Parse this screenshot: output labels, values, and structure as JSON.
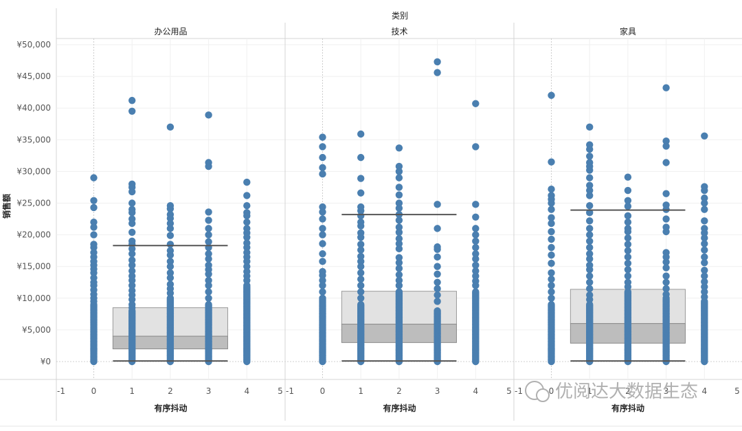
{
  "chart_data": {
    "type": "scatter",
    "title": "类别",
    "ylabel": "销售额",
    "xlabel": "有序抖动",
    "ylim": [
      0,
      50000
    ],
    "yticks": [
      0,
      5000,
      10000,
      15000,
      20000,
      25000,
      30000,
      35000,
      40000,
      45000,
      50000
    ],
    "ytick_labels": [
      "¥0",
      "¥5,000",
      "¥10,000",
      "¥15,000",
      "¥20,000",
      "¥25,000",
      "¥30,000",
      "¥35,000",
      "¥40,000",
      "¥45,000",
      "¥50,000"
    ],
    "xlim": [
      -1,
      5
    ],
    "xticks": [
      -1,
      0,
      1,
      2,
      3,
      4,
      5
    ],
    "grid": true,
    "point_color": "#4a7fb0",
    "panels": [
      {
        "category": "办公用品",
        "box": {
          "q1": 2000,
          "median": 4000,
          "q3": 8500,
          "whisker_low": 100,
          "whisker_high": 18300
        },
        "columns": [
          {
            "x": 0,
            "dense_to": 9000,
            "points": [
              29000,
              25400,
              24300,
              22000,
              21200,
              20000,
              18500,
              18000,
              17200,
              16500,
              15800,
              15200,
              14600,
              14000,
              13200,
              12500,
              12000,
              11300,
              10600,
              10000,
              9500
            ]
          },
          {
            "x": 1,
            "dense_to": 8000,
            "points": [
              41200,
              39500,
              28000,
              27500,
              26800,
              25000,
              24000,
              23500,
              22500,
              21800,
              20400,
              19000,
              18500,
              17800,
              17000,
              16000,
              15200,
              14300,
              13500,
              12800,
              12000,
              11200,
              10500,
              9800,
              9000,
              8500
            ]
          },
          {
            "x": 2,
            "dense_to": 10000,
            "points": [
              37000,
              24600,
              24100,
              23200,
              22600,
              21800,
              21000,
              19900,
              18500,
              17500,
              16800,
              15800,
              15000,
              14000,
              13200,
              12200,
              11500,
              10800
            ]
          },
          {
            "x": 3,
            "dense_to": 9000,
            "points": [
              38900,
              31400,
              30800,
              23600,
              22300,
              21000,
              20000,
              18900,
              18000,
              17000,
              16200,
              15200,
              14500,
              13800,
              12800,
              12000,
              11000,
              10000
            ]
          },
          {
            "x": 4,
            "dense_to": 12000,
            "points": [
              28300,
              26200,
              24600,
              23500,
              23000,
              22000,
              21000,
              20300,
              19600,
              18700,
              18000,
              17200,
              16500,
              15800,
              15000,
              14200,
              13500,
              12800
            ]
          }
        ]
      },
      {
        "category": "技术",
        "box": {
          "q1": 3000,
          "median": 5900,
          "q3": 11100,
          "whisker_low": 100,
          "whisker_high": 23200
        },
        "columns": [
          {
            "x": 0,
            "dense_to": 10000,
            "points": [
              35400,
              33900,
              32200,
              30600,
              29600,
              24400,
              23600,
              22500,
              21000,
              20000,
              18600,
              17000,
              15800,
              14200,
              13600,
              12800,
              12000,
              11000
            ]
          },
          {
            "x": 1,
            "dense_to": 9000,
            "points": [
              35900,
              32200,
              28900,
              26600,
              24400,
              23800,
              23000,
              22000,
              21400,
              20300,
              19600,
              18500,
              17600,
              16600,
              15800,
              15000,
              14000,
              13000,
              12000,
              11000,
              10000
            ]
          },
          {
            "x": 2,
            "dense_to": 11000,
            "points": [
              33700,
              30800,
              30000,
              29000,
              27500,
              26300,
              25000,
              24200,
              23200,
              22300,
              21200,
              20400,
              19400,
              18600,
              17800,
              16400,
              15600,
              14700,
              13700,
              12800,
              12000
            ]
          },
          {
            "x": 3,
            "dense_to": 8000,
            "points": [
              47300,
              45600,
              24800,
              21000,
              18100,
              17700,
              16500,
              15000,
              13800,
              12500,
              11500,
              10500,
              9500
            ]
          },
          {
            "x": 4,
            "dense_to": 11000,
            "points": [
              40700,
              33900,
              24800,
              22800,
              21000,
              20000,
              19000,
              18000,
              17000,
              16200,
              15200,
              14300,
              13500,
              12700,
              12000
            ]
          }
        ]
      },
      {
        "category": "家具",
        "box": {
          "q1": 2900,
          "median": 6000,
          "q3": 11400,
          "whisker_low": 100,
          "whisker_high": 23900
        },
        "columns": [
          {
            "x": 0,
            "dense_to": 9000,
            "points": [
              42000,
              31500,
              27200,
              26200,
              25600,
              25000,
              24000,
              22700,
              21800,
              20500,
              19300,
              18000,
              16800,
              15500,
              14000,
              13000,
              12000,
              11000,
              10000
            ]
          },
          {
            "x": 1,
            "dense_to": 9000,
            "points": [
              37000,
              34200,
              33500,
              32400,
              31400,
              30800,
              30200,
              29000,
              27800,
              27000,
              26200,
              24600,
              23500,
              22200,
              21000,
              20000,
              19000,
              18000,
              17000,
              16200,
              15200,
              14500,
              13500,
              12500,
              11500,
              10500,
              9800
            ]
          },
          {
            "x": 2,
            "dense_to": 11000,
            "points": [
              29100,
              27000,
              25400,
              24500,
              23000,
              22000,
              21000,
              20500,
              19500,
              18500,
              17500,
              16500,
              15500,
              14500,
              13500,
              12500,
              11800
            ]
          },
          {
            "x": 3,
            "dense_to": 10000,
            "points": [
              43200,
              34800,
              34000,
              31400,
              26500,
              24700,
              24000,
              22500,
              21200,
              20500,
              17200,
              16500,
              15700,
              14800,
              13500,
              12500,
              11500,
              10600
            ]
          },
          {
            "x": 4,
            "dense_to": 9500,
            "points": [
              35600,
              27600,
              27000,
              25800,
              25000,
              24000,
              22200,
              21000,
              20300,
              19500,
              18600,
              17600,
              16500,
              15600,
              14400,
              13500,
              12600,
              11800,
              11000,
              10200
            ]
          }
        ]
      }
    ]
  },
  "watermark": {
    "text": "优阅达大数据生态"
  }
}
